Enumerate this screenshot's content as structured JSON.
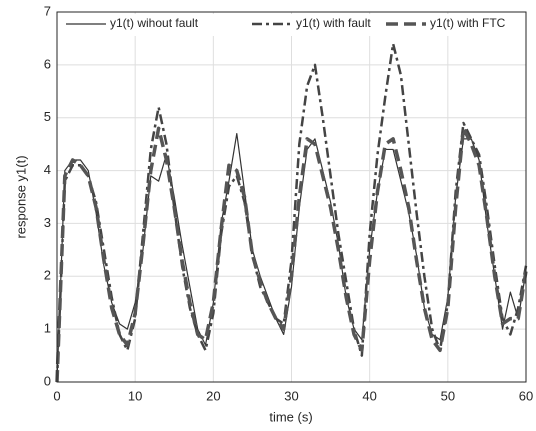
{
  "chart_data": {
    "type": "line",
    "xlabel": "time (s)",
    "ylabel": "response y1(t)",
    "x": [
      0,
      1,
      2,
      3,
      4,
      5,
      6,
      7,
      8,
      9,
      10,
      11,
      12,
      13,
      14,
      15,
      16,
      17,
      18,
      19,
      20,
      21,
      22,
      23,
      24,
      25,
      26,
      27,
      28,
      29,
      30,
      31,
      32,
      33,
      34,
      35,
      36,
      37,
      38,
      39,
      40,
      41,
      42,
      43,
      44,
      45,
      46,
      47,
      48,
      49,
      50,
      51,
      52,
      53,
      54,
      55,
      56,
      57,
      58,
      59,
      60
    ],
    "series": [
      {
        "name": "y1(t) wihout fault",
        "color": "#333333",
        "style": "solid",
        "values": [
          0,
          4.0,
          4.2,
          4.2,
          4.0,
          3.2,
          2.2,
          1.5,
          1.1,
          1.0,
          1.5,
          2.5,
          3.9,
          3.8,
          4.3,
          3.5,
          2.6,
          1.8,
          1.0,
          0.7,
          1.5,
          3.0,
          3.8,
          4.7,
          3.6,
          2.5,
          2.0,
          1.6,
          1.2,
          0.9,
          1.8,
          3.3,
          4.4,
          4.6,
          4.0,
          3.4,
          2.6,
          1.6,
          1.0,
          0.8,
          2.5,
          3.6,
          4.4,
          4.4,
          3.8,
          3.2,
          2.4,
          1.4,
          0.9,
          0.8,
          1.6,
          3.5,
          4.6,
          4.6,
          4.2,
          3.0,
          2.0,
          1.0,
          1.7,
          1.2,
          2.1
        ]
      },
      {
        "name": "y1(t) with fault",
        "color": "#444444",
        "style": "dashdot",
        "values": [
          0,
          3.8,
          4.1,
          4.1,
          3.9,
          3.4,
          2.5,
          1.6,
          0.9,
          0.6,
          1.2,
          2.8,
          4.4,
          5.2,
          4.5,
          3.3,
          2.2,
          1.4,
          0.9,
          0.6,
          1.3,
          2.8,
          3.7,
          3.9,
          3.4,
          2.4,
          1.8,
          1.5,
          1.2,
          1.1,
          2.3,
          4.5,
          5.6,
          6.0,
          5.0,
          3.9,
          2.8,
          1.9,
          1.0,
          0.5,
          2.8,
          4.3,
          5.4,
          6.4,
          5.8,
          4.5,
          3.2,
          2.0,
          1.0,
          0.6,
          1.5,
          3.6,
          4.9,
          4.6,
          4.3,
          3.3,
          2.2,
          1.2,
          0.9,
          1.4,
          2.2
        ]
      },
      {
        "name": "y1(t) with FTC",
        "color": "#555555",
        "style": "dashed",
        "values": [
          0,
          3.9,
          4.2,
          4.1,
          3.9,
          3.3,
          2.3,
          1.4,
          0.9,
          0.7,
          1.3,
          2.6,
          4.0,
          4.8,
          4.2,
          3.3,
          2.3,
          1.5,
          0.9,
          0.8,
          1.5,
          2.9,
          4.1,
          4.0,
          3.5,
          2.4,
          1.9,
          1.5,
          1.2,
          1.0,
          2.0,
          3.5,
          4.6,
          4.5,
          3.9,
          3.3,
          2.5,
          1.6,
          0.9,
          0.6,
          2.3,
          3.6,
          4.5,
          4.6,
          4.0,
          3.3,
          2.3,
          1.4,
          0.8,
          0.6,
          1.4,
          3.3,
          4.8,
          4.5,
          4.1,
          3.1,
          2.0,
          1.1,
          1.2,
          1.2,
          2.1
        ]
      }
    ],
    "xlim": [
      0,
      60
    ],
    "xticks": [
      0,
      10,
      20,
      30,
      40,
      50,
      60
    ],
    "ylim": [
      0,
      7
    ],
    "yticks": [
      0,
      1,
      2,
      3,
      4,
      5,
      6,
      7
    ],
    "grid": true,
    "legend": "top"
  }
}
